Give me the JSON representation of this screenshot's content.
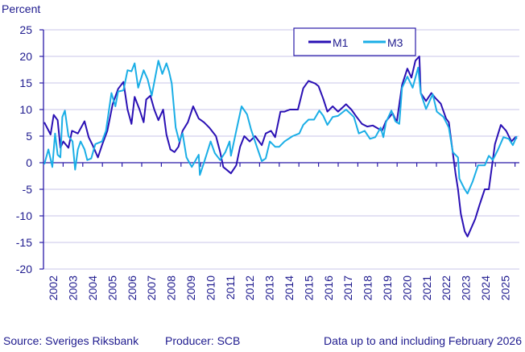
{
  "chart_data": {
    "type": "line",
    "ylabel": "Percent",
    "ylim": [
      -20,
      25
    ],
    "yticks": [
      25,
      20,
      15,
      10,
      5,
      0,
      -5,
      -10,
      -15,
      -20
    ],
    "xlim": [
      2002,
      2026.1
    ],
    "xticks": [
      "2002",
      "2003",
      "2004",
      "2005",
      "2006",
      "2007",
      "2008",
      "2009",
      "2010",
      "2011",
      "2012",
      "2013",
      "2014",
      "2015",
      "2016",
      "2017",
      "2018",
      "2019",
      "2020",
      "2021",
      "2022",
      "2023",
      "2024",
      "2025"
    ],
    "grid": true,
    "legend": "top-center",
    "colors": {
      "M1": "#2a10b4",
      "M3": "#1aaee6",
      "axis": "#2a1aa8",
      "grid": "#c9c6ea",
      "text": "#1e1a8e"
    },
    "series": [
      {
        "name": "M1",
        "points": [
          [
            2002.04,
            7.6
          ],
          [
            2002.36,
            5.3
          ],
          [
            2002.52,
            9
          ],
          [
            2002.72,
            8
          ],
          [
            2002.86,
            2.8
          ],
          [
            2003.01,
            4
          ],
          [
            2003.27,
            2.8
          ],
          [
            2003.45,
            6
          ],
          [
            2003.75,
            5.5
          ],
          [
            2004.09,
            7.8
          ],
          [
            2004.3,
            4.8
          ],
          [
            2004.5,
            3.3
          ],
          [
            2004.77,
            1
          ],
          [
            2004.98,
            3.3
          ],
          [
            2005.25,
            6
          ],
          [
            2005.52,
            11
          ],
          [
            2005.8,
            13.9
          ],
          [
            2006.07,
            15.2
          ],
          [
            2006.28,
            10
          ],
          [
            2006.48,
            7.3
          ],
          [
            2006.64,
            12.4
          ],
          [
            2006.89,
            10
          ],
          [
            2007.1,
            7.6
          ],
          [
            2007.23,
            11.9
          ],
          [
            2007.44,
            12.6
          ],
          [
            2007.64,
            10
          ],
          [
            2007.85,
            8
          ],
          [
            2008.09,
            10
          ],
          [
            2008.26,
            5.3
          ],
          [
            2008.46,
            2.5
          ],
          [
            2008.67,
            2
          ],
          [
            2008.87,
            3
          ],
          [
            2009.08,
            6
          ],
          [
            2009.35,
            7.6
          ],
          [
            2009.62,
            10.6
          ],
          [
            2009.9,
            8.3
          ],
          [
            2010.17,
            7.6
          ],
          [
            2010.44,
            6.6
          ],
          [
            2010.78,
            5
          ],
          [
            2010.99,
            2
          ],
          [
            2011.15,
            -0.8
          ],
          [
            2011.54,
            -2
          ],
          [
            2011.81,
            -0.5
          ],
          [
            2012.01,
            3
          ],
          [
            2012.22,
            5
          ],
          [
            2012.49,
            4
          ],
          [
            2012.77,
            5
          ],
          [
            2013.11,
            3.3
          ],
          [
            2013.31,
            5.5
          ],
          [
            2013.58,
            6
          ],
          [
            2013.79,
            4.8
          ],
          [
            2014.06,
            9.6
          ],
          [
            2014.27,
            9.6
          ],
          [
            2014.54,
            10
          ],
          [
            2014.95,
            10
          ],
          [
            2015.22,
            14
          ],
          [
            2015.49,
            15.4
          ],
          [
            2015.83,
            14.9
          ],
          [
            2016.0,
            14.4
          ],
          [
            2016.24,
            12
          ],
          [
            2016.45,
            9.6
          ],
          [
            2016.72,
            10.6
          ],
          [
            2016.99,
            9.6
          ],
          [
            2017.4,
            11
          ],
          [
            2017.67,
            10
          ],
          [
            2017.94,
            8.6
          ],
          [
            2018.21,
            7.3
          ],
          [
            2018.48,
            6.8
          ],
          [
            2018.76,
            7
          ],
          [
            2019.23,
            6
          ],
          [
            2019.43,
            7.8
          ],
          [
            2019.77,
            9.3
          ],
          [
            2019.98,
            7.6
          ],
          [
            2020.25,
            14.6
          ],
          [
            2020.52,
            17.7
          ],
          [
            2020.73,
            16
          ],
          [
            2020.93,
            19.2
          ],
          [
            2021.13,
            20
          ],
          [
            2021.2,
            13.1
          ],
          [
            2021.47,
            11.6
          ],
          [
            2021.74,
            13.1
          ],
          [
            2021.96,
            12.1
          ],
          [
            2022.22,
            11.1
          ],
          [
            2022.49,
            8.3
          ],
          [
            2022.63,
            7.6
          ],
          [
            2022.97,
            -2
          ],
          [
            2023.1,
            -5
          ],
          [
            2023.24,
            -9.6
          ],
          [
            2023.44,
            -12.9
          ],
          [
            2023.58,
            -13.9
          ],
          [
            2023.97,
            -10.6
          ],
          [
            2024.19,
            -8
          ],
          [
            2024.46,
            -5
          ],
          [
            2024.67,
            -5
          ],
          [
            2024.98,
            3.5
          ],
          [
            2025.28,
            7.1
          ],
          [
            2025.55,
            6
          ],
          [
            2025.82,
            4
          ],
          [
            2026.02,
            4.8
          ],
          [
            2026.09,
            4.5
          ]
        ]
      },
      {
        "name": "M3",
        "points": [
          [
            2002.04,
            -0.3
          ],
          [
            2002.25,
            2.5
          ],
          [
            2002.45,
            -0.8
          ],
          [
            2002.59,
            5.5
          ],
          [
            2002.72,
            1.5
          ],
          [
            2002.86,
            1
          ],
          [
            2002.96,
            8.6
          ],
          [
            2003.09,
            9.8
          ],
          [
            2003.27,
            5
          ],
          [
            2003.48,
            4
          ],
          [
            2003.61,
            -1.3
          ],
          [
            2003.75,
            2.5
          ],
          [
            2003.89,
            4
          ],
          [
            2004.09,
            2.5
          ],
          [
            2004.23,
            0.5
          ],
          [
            2004.43,
            0.8
          ],
          [
            2004.64,
            3.5
          ],
          [
            2004.98,
            4
          ],
          [
            2005.18,
            6
          ],
          [
            2005.46,
            13.1
          ],
          [
            2005.66,
            10.6
          ],
          [
            2005.8,
            13.4
          ],
          [
            2006.07,
            13.6
          ],
          [
            2006.28,
            17.4
          ],
          [
            2006.48,
            17.2
          ],
          [
            2006.64,
            18.7
          ],
          [
            2006.82,
            14.1
          ],
          [
            2007.1,
            17.4
          ],
          [
            2007.3,
            15.7
          ],
          [
            2007.51,
            12.6
          ],
          [
            2007.85,
            19.2
          ],
          [
            2008.05,
            16.7
          ],
          [
            2008.26,
            18.7
          ],
          [
            2008.39,
            17.2
          ],
          [
            2008.53,
            14.9
          ],
          [
            2008.73,
            6.6
          ],
          [
            2008.91,
            4
          ],
          [
            2009.08,
            5.5
          ],
          [
            2009.28,
            1
          ],
          [
            2009.55,
            -0.8
          ],
          [
            2009.9,
            1.5
          ],
          [
            2009.96,
            -2.3
          ],
          [
            2010.17,
            0
          ],
          [
            2010.51,
            4
          ],
          [
            2010.72,
            1.8
          ],
          [
            2010.99,
            0.5
          ],
          [
            2011.26,
            2
          ],
          [
            2011.47,
            4
          ],
          [
            2011.54,
            1.3
          ],
          [
            2011.81,
            6
          ],
          [
            2012.08,
            10.6
          ],
          [
            2012.36,
            9.1
          ],
          [
            2012.56,
            6.3
          ],
          [
            2012.83,
            3.3
          ],
          [
            2013.11,
            0.3
          ],
          [
            2013.31,
            0.8
          ],
          [
            2013.52,
            4
          ],
          [
            2013.79,
            3
          ],
          [
            2014.0,
            3
          ],
          [
            2014.27,
            4
          ],
          [
            2014.68,
            5
          ],
          [
            2015.02,
            5.5
          ],
          [
            2015.22,
            7.1
          ],
          [
            2015.49,
            8.1
          ],
          [
            2015.77,
            8.1
          ],
          [
            2016.04,
            9.8
          ],
          [
            2016.24,
            8.8
          ],
          [
            2016.45,
            7.1
          ],
          [
            2016.72,
            8.6
          ],
          [
            2016.99,
            8.8
          ],
          [
            2017.4,
            10
          ],
          [
            2017.8,
            8.6
          ],
          [
            2018.05,
            5.5
          ],
          [
            2018.35,
            6
          ],
          [
            2018.62,
            4.5
          ],
          [
            2018.89,
            4.8
          ],
          [
            2019.16,
            6.6
          ],
          [
            2019.3,
            4.8
          ],
          [
            2019.43,
            7.6
          ],
          [
            2019.71,
            9.8
          ],
          [
            2019.91,
            7.8
          ],
          [
            2020.11,
            7.3
          ],
          [
            2020.25,
            14.1
          ],
          [
            2020.52,
            16.2
          ],
          [
            2020.79,
            14.1
          ],
          [
            2021.07,
            17.9
          ],
          [
            2021.2,
            13.1
          ],
          [
            2021.47,
            10.1
          ],
          [
            2021.81,
            12.9
          ],
          [
            2022.02,
            9.6
          ],
          [
            2022.36,
            8.6
          ],
          [
            2022.63,
            6.6
          ],
          [
            2022.83,
            2
          ],
          [
            2023.1,
            1
          ],
          [
            2023.17,
            -3
          ],
          [
            2023.44,
            -5
          ],
          [
            2023.58,
            -5.8
          ],
          [
            2023.85,
            -3.5
          ],
          [
            2024.12,
            -0.5
          ],
          [
            2024.46,
            -0.5
          ],
          [
            2024.67,
            1.3
          ],
          [
            2024.87,
            0.5
          ],
          [
            2025.14,
            2.5
          ],
          [
            2025.41,
            4.8
          ],
          [
            2025.68,
            4.5
          ],
          [
            2025.89,
            3.3
          ],
          [
            2026.09,
            5
          ]
        ]
      }
    ]
  },
  "footer": {
    "source": "Source: Sveriges Riksbank",
    "producer": "Producer: SCB",
    "note": "Data up to and including February 2026"
  }
}
